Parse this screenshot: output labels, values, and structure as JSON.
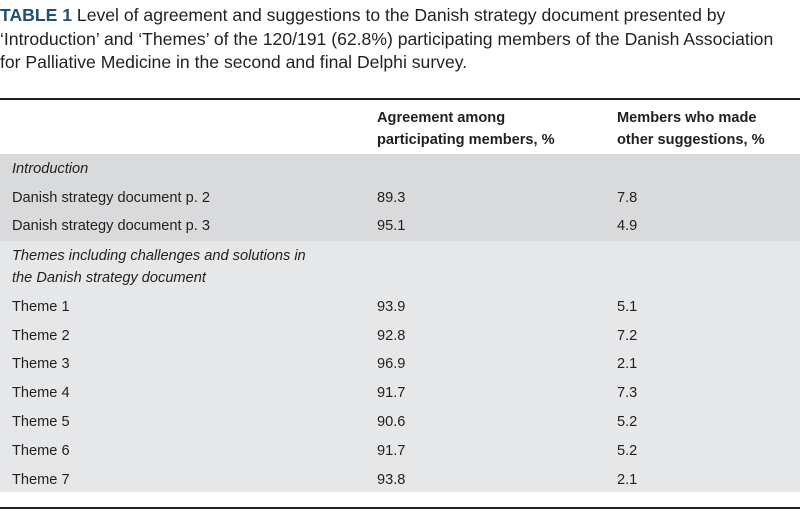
{
  "caption": {
    "label": "TABLE 1",
    "text": " Level of agreement and suggestions to the Danish strategy document presented by ‘Introduction’ and ‘Themes’ of the 120/191 (62.8%) participating members of the Danish Association for Palliative Medicine in the second and final Delphi survey."
  },
  "columns": {
    "col2_line1": "Agreement among",
    "col2_line2": "participating members, %",
    "col3_line1": "Members who made",
    "col3_line2": "other suggestions, %"
  },
  "sections": [
    {
      "title_line1": "Introduction",
      "title_line2": "",
      "rows": [
        {
          "label": "Danish strategy document p. 2",
          "agreement": "89.3",
          "suggestions": "7.8"
        },
        {
          "label": "Danish strategy document p. 3",
          "agreement": "95.1",
          "suggestions": "4.9"
        }
      ]
    },
    {
      "title_line1": "Themes including challenges and solutions in",
      "title_line2": "the Danish strategy document",
      "rows": [
        {
          "label": "Theme 1",
          "agreement": "93.9",
          "suggestions": "5.1"
        },
        {
          "label": "Theme 2",
          "agreement": "92.8",
          "suggestions": "7.2"
        },
        {
          "label": "Theme 3",
          "agreement": "96.9",
          "suggestions": "2.1"
        },
        {
          "label": "Theme 4",
          "agreement": "91.7",
          "suggestions": "7.3"
        },
        {
          "label": "Theme 5",
          "agreement": "90.6",
          "suggestions": "5.2"
        },
        {
          "label": "Theme 6",
          "agreement": "91.7",
          "suggestions": "5.2"
        },
        {
          "label": "Theme 7",
          "agreement": "93.8",
          "suggestions": "2.1"
        }
      ]
    }
  ]
}
